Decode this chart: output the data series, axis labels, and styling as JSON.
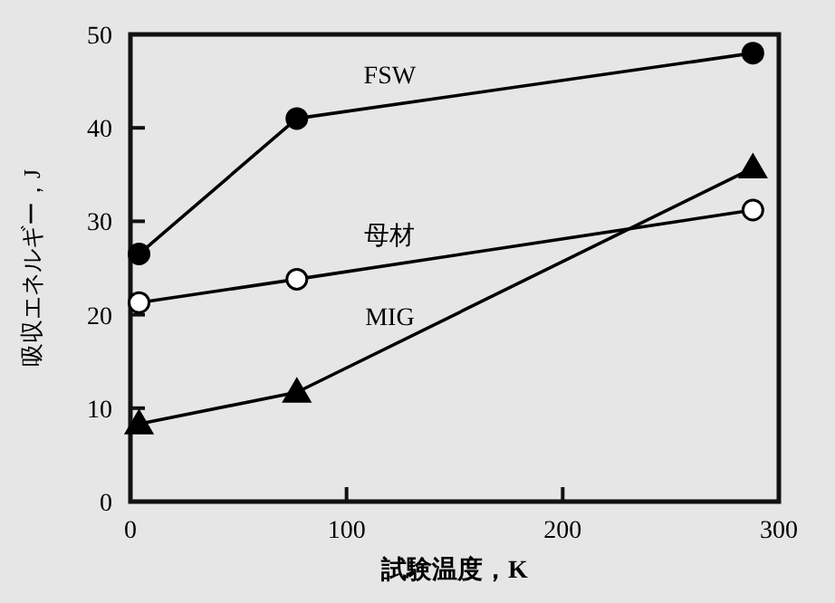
{
  "chart_data": {
    "type": "line",
    "xlabel": "試験温度，K",
    "ylabel": "吸収エネルギー，J",
    "xlim": [
      0,
      300
    ],
    "xticks": [
      0,
      100,
      200,
      300
    ],
    "ylim": [
      0,
      50
    ],
    "yticks": [
      0,
      10,
      20,
      30,
      40,
      50
    ],
    "grid": false,
    "series": [
      {
        "name": "FSW",
        "color": "#000000",
        "marker": "circle",
        "x": [
          4,
          77,
          288
        ],
        "values": [
          26.5,
          41,
          48
        ]
      },
      {
        "name": "母材",
        "color": "#000000",
        "marker": "circle",
        "x": [
          4,
          77,
          288
        ],
        "values": [
          21.3,
          23.8,
          31.2
        ]
      },
      {
        "name": "MIG",
        "color": "#000000",
        "marker": "triangle",
        "x": [
          4,
          77,
          288
        ],
        "values": [
          8.3,
          11.7,
          35.7
        ]
      }
    ]
  }
}
